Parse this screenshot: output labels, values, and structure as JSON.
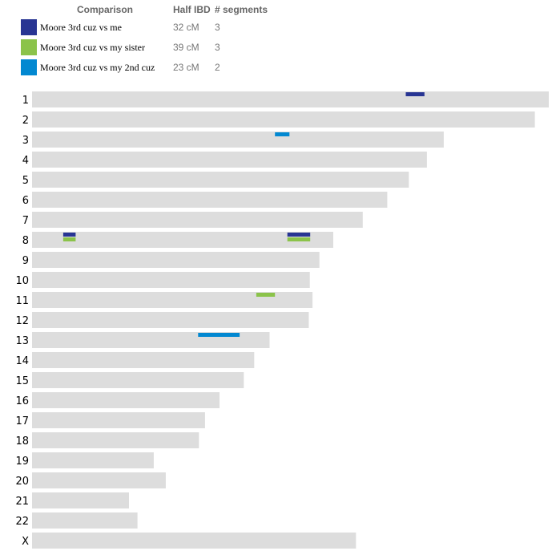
{
  "legend": {
    "headers": {
      "comparison": "Comparison",
      "half_ibd": "Half IBD",
      "segments": "# segments"
    },
    "entries": [
      {
        "label": "Moore 3rd cuz vs me",
        "half_ibd": "32 cM",
        "segments": "3",
        "color": "#283593"
      },
      {
        "label": "Moore 3rd cuz vs my sister",
        "half_ibd": "39 cM",
        "segments": "3",
        "color": "#8bc34a"
      },
      {
        "label": "Moore 3rd cuz vs my 2nd cuz",
        "half_ibd": "23 cM",
        "segments": "2",
        "color": "#0288d1"
      }
    ]
  },
  "chart_data": {
    "type": "chromosome-browser",
    "unit": "Mb",
    "bar_color": "#dddddd",
    "chromosomes": [
      {
        "name": "1",
        "length": 248.9
      },
      {
        "name": "2",
        "length": 242.2
      },
      {
        "name": "3",
        "length": 198.3
      },
      {
        "name": "4",
        "length": 190.2
      },
      {
        "name": "5",
        "length": 181.5
      },
      {
        "name": "6",
        "length": 171.1
      },
      {
        "name": "7",
        "length": 159.3
      },
      {
        "name": "8",
        "length": 145.1
      },
      {
        "name": "9",
        "length": 138.4
      },
      {
        "name": "10",
        "length": 133.8
      },
      {
        "name": "11",
        "length": 135.1
      },
      {
        "name": "12",
        "length": 133.3
      },
      {
        "name": "13",
        "length": 114.4
      },
      {
        "name": "14",
        "length": 107.0
      },
      {
        "name": "15",
        "length": 102.0
      },
      {
        "name": "16",
        "length": 90.3
      },
      {
        "name": "17",
        "length": 83.3
      },
      {
        "name": "18",
        "length": 80.4
      },
      {
        "name": "19",
        "length": 58.6
      },
      {
        "name": "20",
        "length": 64.4
      },
      {
        "name": "21",
        "length": 46.7
      },
      {
        "name": "22",
        "length": 50.8
      },
      {
        "name": "X",
        "length": 156.0
      }
    ],
    "segments": [
      {
        "comparison": 0,
        "chromosome": "1",
        "start": 180.0,
        "end": 189.0
      },
      {
        "comparison": 2,
        "chromosome": "3",
        "start": 117.0,
        "end": 124.0
      },
      {
        "comparison": 0,
        "chromosome": "8",
        "start": 15.0,
        "end": 21.0
      },
      {
        "comparison": 1,
        "chromosome": "8",
        "start": 15.0,
        "end": 21.0
      },
      {
        "comparison": 0,
        "chromosome": "8",
        "start": 123.0,
        "end": 134.0
      },
      {
        "comparison": 1,
        "chromosome": "8",
        "start": 123.0,
        "end": 134.0
      },
      {
        "comparison": 1,
        "chromosome": "11",
        "start": 108.0,
        "end": 117.0
      },
      {
        "comparison": 2,
        "chromosome": "13",
        "start": 80.0,
        "end": 100.0
      }
    ]
  }
}
